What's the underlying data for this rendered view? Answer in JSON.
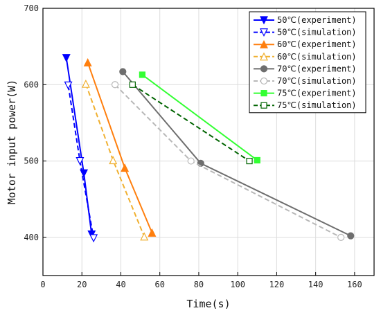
{
  "chart_data": {
    "type": "line",
    "xlabel": "Time(s)",
    "ylabel": "Motor input power(W)",
    "xlim": [
      0,
      170
    ],
    "ylim": [
      350,
      700
    ],
    "xticks": [
      0,
      20,
      40,
      60,
      80,
      100,
      120,
      140,
      160
    ],
    "yticks": [
      400,
      500,
      600,
      700
    ],
    "grid": true,
    "legend_position": "top-right",
    "series": [
      {
        "name": "50℃(experiment)",
        "color": "#0000ff",
        "dash": "solid",
        "marker": "triangle-down",
        "filled": true,
        "x": [
          12,
          21,
          25
        ],
        "y": [
          635,
          484,
          404
        ]
      },
      {
        "name": "50℃(simulation)",
        "color": "#0000ff",
        "dash": "dashed",
        "marker": "triangle-down",
        "filled": false,
        "x": [
          13,
          19,
          26
        ],
        "y": [
          599,
          500,
          399
        ]
      },
      {
        "name": "60℃(experiment)",
        "color": "#ff7f0e",
        "dash": "solid",
        "marker": "triangle-up",
        "filled": true,
        "x": [
          23,
          42,
          56
        ],
        "y": [
          629,
          491,
          406
        ]
      },
      {
        "name": "60℃(simulation)",
        "color": "#f0b030",
        "dash": "dashed",
        "marker": "triangle-up",
        "filled": false,
        "x": [
          22,
          36,
          52
        ],
        "y": [
          601,
          501,
          401
        ]
      },
      {
        "name": "70℃(experiment)",
        "color": "#6e6e6e",
        "dash": "solid",
        "marker": "circle",
        "filled": true,
        "x": [
          41,
          81,
          158
        ],
        "y": [
          617,
          497,
          402
        ]
      },
      {
        "name": "70℃(simulation)",
        "color": "#b8b8b8",
        "dash": "dashed",
        "marker": "circle",
        "filled": false,
        "x": [
          37,
          76,
          153
        ],
        "y": [
          600,
          500,
          400
        ]
      },
      {
        "name": "75℃(experiment)",
        "color": "#33ff33",
        "dash": "solid",
        "marker": "square",
        "filled": true,
        "x": [
          51,
          110
        ],
        "y": [
          613,
          501
        ]
      },
      {
        "name": "75℃(simulation)",
        "color": "#006400",
        "dash": "dashed",
        "marker": "square",
        "filled": false,
        "x": [
          46,
          106
        ],
        "y": [
          600,
          500
        ]
      }
    ]
  }
}
